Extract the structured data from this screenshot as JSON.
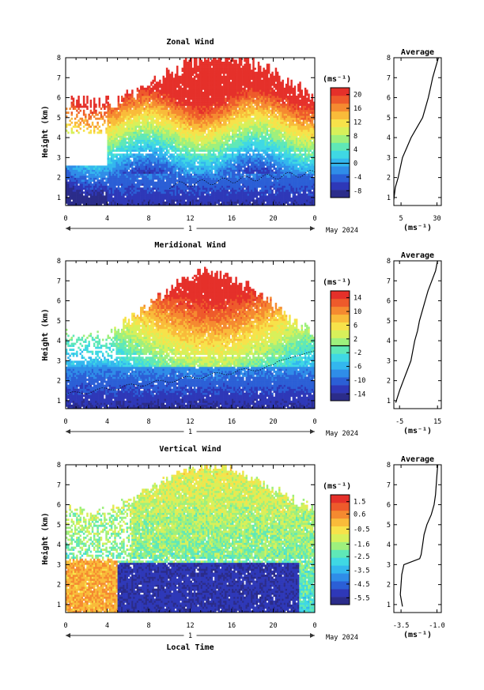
{
  "figure": {
    "x_axis_label": "Local Time",
    "date_label": "May 2024",
    "day_label": "1",
    "height_label": "Height (km)",
    "unit_label": "(ms⁻¹)",
    "average_title": "Average"
  },
  "chart_data": [
    {
      "type": "heatmap",
      "title": "Zonal Wind",
      "xlabel": "Local Time",
      "ylabel": "Height (km)",
      "xlim": [
        0,
        24
      ],
      "ylim": [
        0.6,
        8
      ],
      "x_ticks": [
        "0",
        "4",
        "8",
        "12",
        "16",
        "20",
        "0"
      ],
      "y_ticks": [
        "1",
        "2",
        "3",
        "4",
        "5",
        "6",
        "7",
        "8"
      ],
      "colorbar": {
        "unit": "(ms⁻¹)",
        "range": [
          -10,
          22
        ],
        "ticks": [
          "20",
          "16",
          "12",
          "8",
          "4",
          "0",
          "-4",
          "-8"
        ],
        "zero_line": 0
      },
      "contour_zero": true,
      "average_profile": {
        "title": "Average",
        "xlabel": "(ms⁻¹)",
        "x_ticks": [
          "5",
          "30"
        ],
        "xlim": [
          0,
          33
        ],
        "height": [
          0.9,
          1.5,
          2,
          2.5,
          3,
          3.5,
          4,
          4.5,
          5,
          5.5,
          6,
          6.5,
          7,
          7.5,
          8
        ],
        "value": [
          0,
          1,
          3,
          4.5,
          6,
          9,
          12,
          16,
          20,
          22,
          24,
          25.5,
          27,
          29,
          31
        ]
      }
    },
    {
      "type": "heatmap",
      "title": "Meridional Wind",
      "xlabel": "Local Time",
      "ylabel": "Height (km)",
      "xlim": [
        0,
        24
      ],
      "ylim": [
        0.6,
        8
      ],
      "x_ticks": [
        "0",
        "4",
        "8",
        "12",
        "16",
        "20",
        "0"
      ],
      "y_ticks": [
        "1",
        "2",
        "3",
        "4",
        "5",
        "6",
        "7",
        "8"
      ],
      "colorbar": {
        "unit": "(ms⁻¹)",
        "range": [
          -16,
          16
        ],
        "ticks": [
          "14",
          "10",
          "6",
          "2",
          "-2",
          "-6",
          "-10",
          "-14"
        ],
        "zero_line": 0
      },
      "contour_zero": true,
      "average_profile": {
        "title": "Average",
        "xlabel": "(ms⁻¹)",
        "x_ticks": [
          "-5",
          "15"
        ],
        "xlim": [
          -8,
          17
        ],
        "height": [
          0.9,
          1.5,
          2,
          2.5,
          3,
          3.5,
          4,
          4.5,
          5,
          5.5,
          6,
          6.5,
          7,
          7.5,
          8
        ],
        "value": [
          -7,
          -5,
          -3,
          -1,
          1,
          2,
          3,
          4.5,
          5.5,
          7,
          8.5,
          10,
          12,
          14,
          15
        ]
      }
    },
    {
      "type": "heatmap",
      "title": "Vertical Wind",
      "xlabel": "Local Time",
      "ylabel": "Height (km)",
      "xlim": [
        0,
        24
      ],
      "ylim": [
        0.6,
        8
      ],
      "x_ticks": [
        "0",
        "4",
        "8",
        "12",
        "16",
        "20",
        "0"
      ],
      "y_ticks": [
        "1",
        "2",
        "3",
        "4",
        "5",
        "6",
        "7",
        "8"
      ],
      "colorbar": {
        "unit": "(ms⁻¹)",
        "range": [
          -6,
          2
        ],
        "ticks": [
          "1.5",
          "0.6",
          "-0.5",
          "-1.6",
          "-2.5",
          "-3.5",
          "-4.5",
          "-5.5"
        ],
        "zero_line": null
      },
      "contour_zero": false,
      "average_profile": {
        "title": "Average",
        "xlabel": "(ms⁻¹)",
        "x_ticks": [
          "-3.5",
          "-1.0"
        ],
        "xlim": [
          -4,
          -0.7
        ],
        "height": [
          0.9,
          1.5,
          2,
          2.5,
          3,
          3.3,
          3.5,
          4,
          4.5,
          5,
          5.5,
          6,
          6.5,
          7,
          7.5,
          8
        ],
        "value": [
          -3.4,
          -3.55,
          -3.5,
          -3.45,
          -3.3,
          -2.2,
          -2.1,
          -2.0,
          -1.9,
          -1.7,
          -1.4,
          -1.2,
          -1.1,
          -1.05,
          -1.0,
          -0.95
        ]
      }
    }
  ]
}
